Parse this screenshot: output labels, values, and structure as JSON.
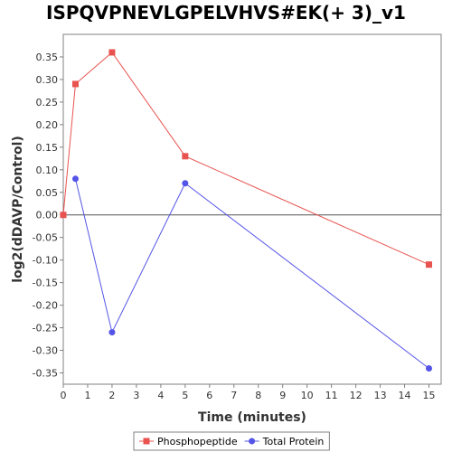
{
  "chart_data": {
    "type": "line",
    "title": "ISPQVPNEVLGPELVHVS#EK(+ 3)_v1",
    "xlabel": "Time (minutes)",
    "ylabel": "log2(dDAVP/Control)",
    "xlim": [
      0,
      15.5
    ],
    "ylim": [
      -0.375,
      0.4
    ],
    "x_ticks": [
      0,
      1,
      2,
      3,
      4,
      5,
      6,
      7,
      8,
      9,
      10,
      11,
      12,
      13,
      14,
      15
    ],
    "y_ticks": [
      0.35,
      0.3,
      0.25,
      0.2,
      0.15,
      0.1,
      0.05,
      0.0,
      -0.05,
      -0.1,
      -0.15,
      -0.2,
      -0.25,
      -0.3,
      -0.35
    ],
    "y_tick_labels": [
      "0.35",
      "0.30",
      "0.25",
      "0.20",
      "0.15",
      "0.10",
      "0.05",
      "0.00",
      "-0.05",
      "-0.10",
      "-0.15",
      "-0.20",
      "-0.25",
      "-0.30",
      "-0.35"
    ],
    "zero_line": true,
    "grid": false,
    "legend_position": "bottom",
    "series": [
      {
        "name": "Phosphopeptide",
        "color": "#e8534f",
        "marker": "square",
        "x": [
          0,
          0.5,
          2,
          5,
          15
        ],
        "y": [
          0.0,
          0.29,
          0.36,
          0.13,
          -0.11
        ]
      },
      {
        "name": "Total Protein",
        "color": "#5454e8",
        "marker": "circle",
        "x": [
          0.5,
          2,
          5,
          15
        ],
        "y": [
          0.08,
          -0.26,
          0.07,
          -0.34
        ]
      }
    ]
  }
}
